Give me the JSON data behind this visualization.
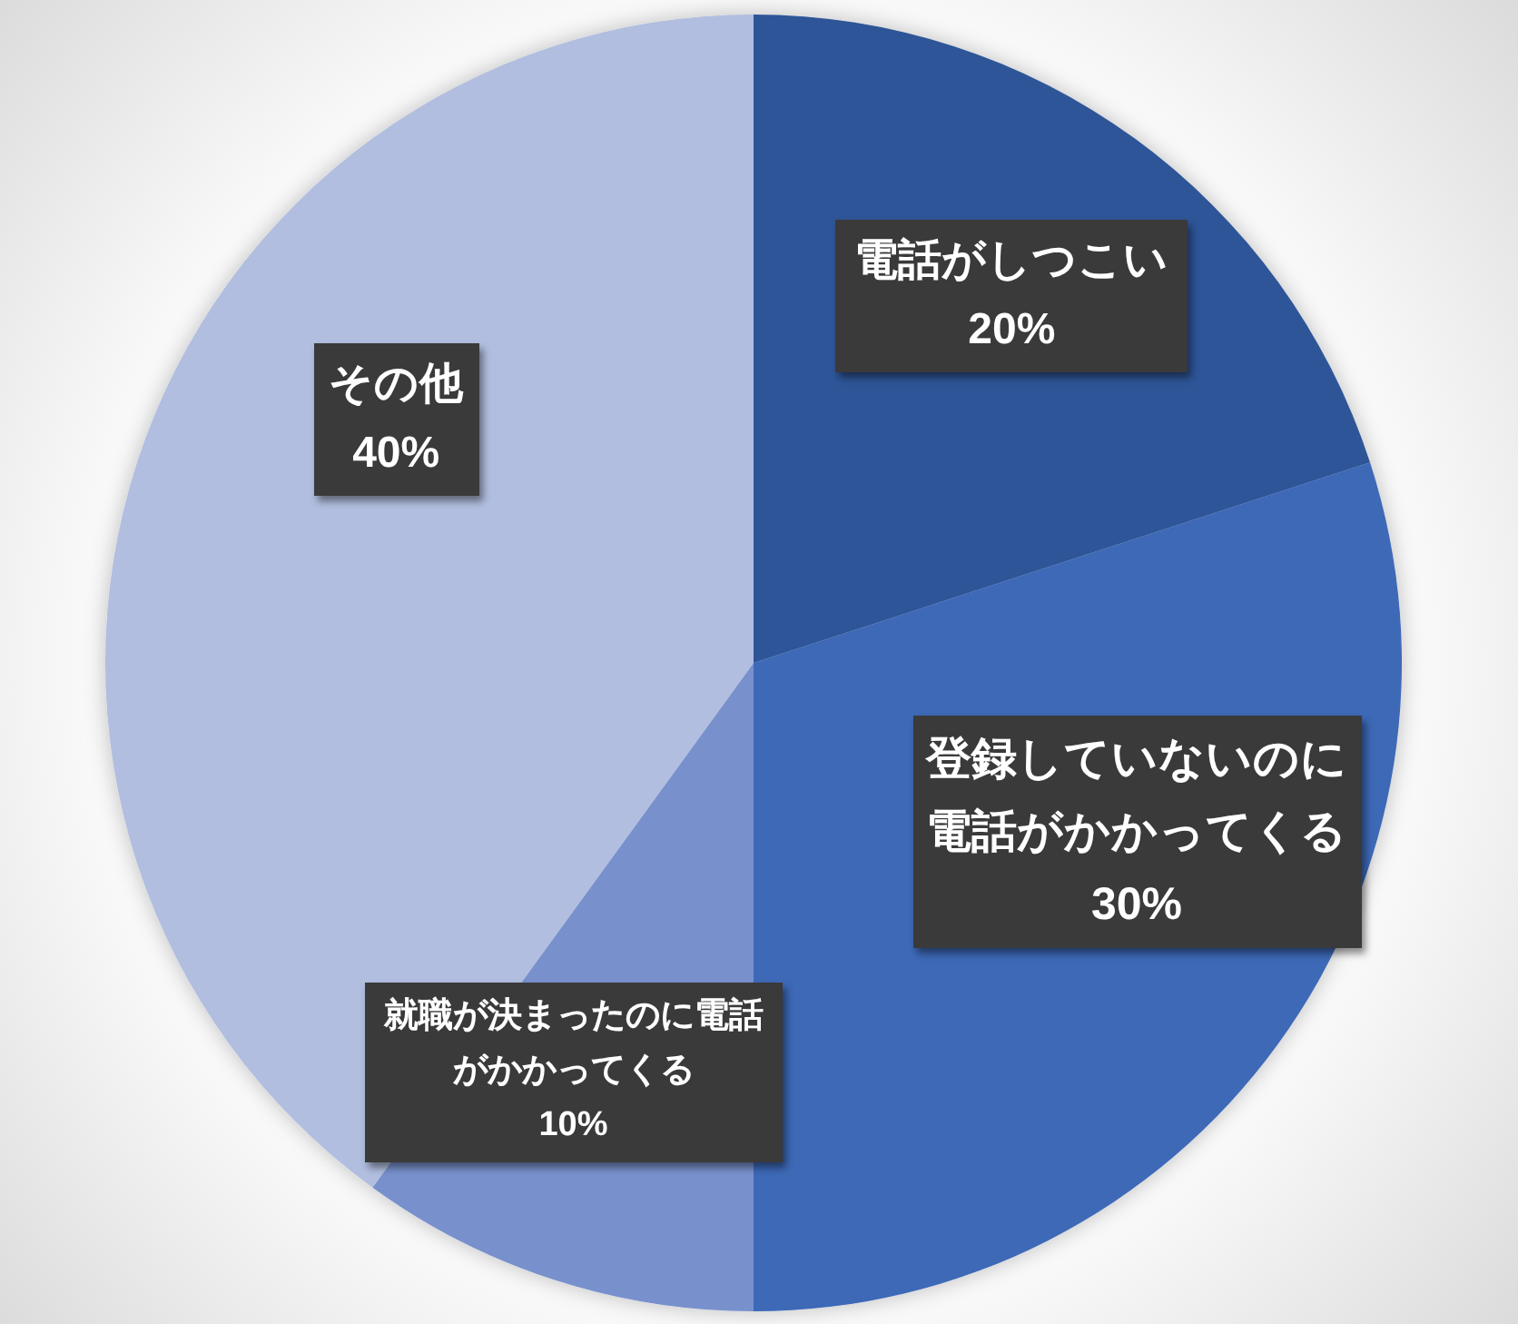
{
  "chart_data": {
    "type": "pie",
    "categories": [
      "電話がしつこい",
      "登録していないのに電話がかかってくる",
      "就職が決まったのに電話がかかってくる",
      "その他"
    ],
    "values": [
      20,
      30,
      10,
      40
    ],
    "colors": [
      "#2f5597",
      "#3e69b7",
      "#7891cd",
      "#b1bedf"
    ],
    "value_labels": [
      "20%",
      "30%",
      "10%",
      "40%"
    ]
  }
}
